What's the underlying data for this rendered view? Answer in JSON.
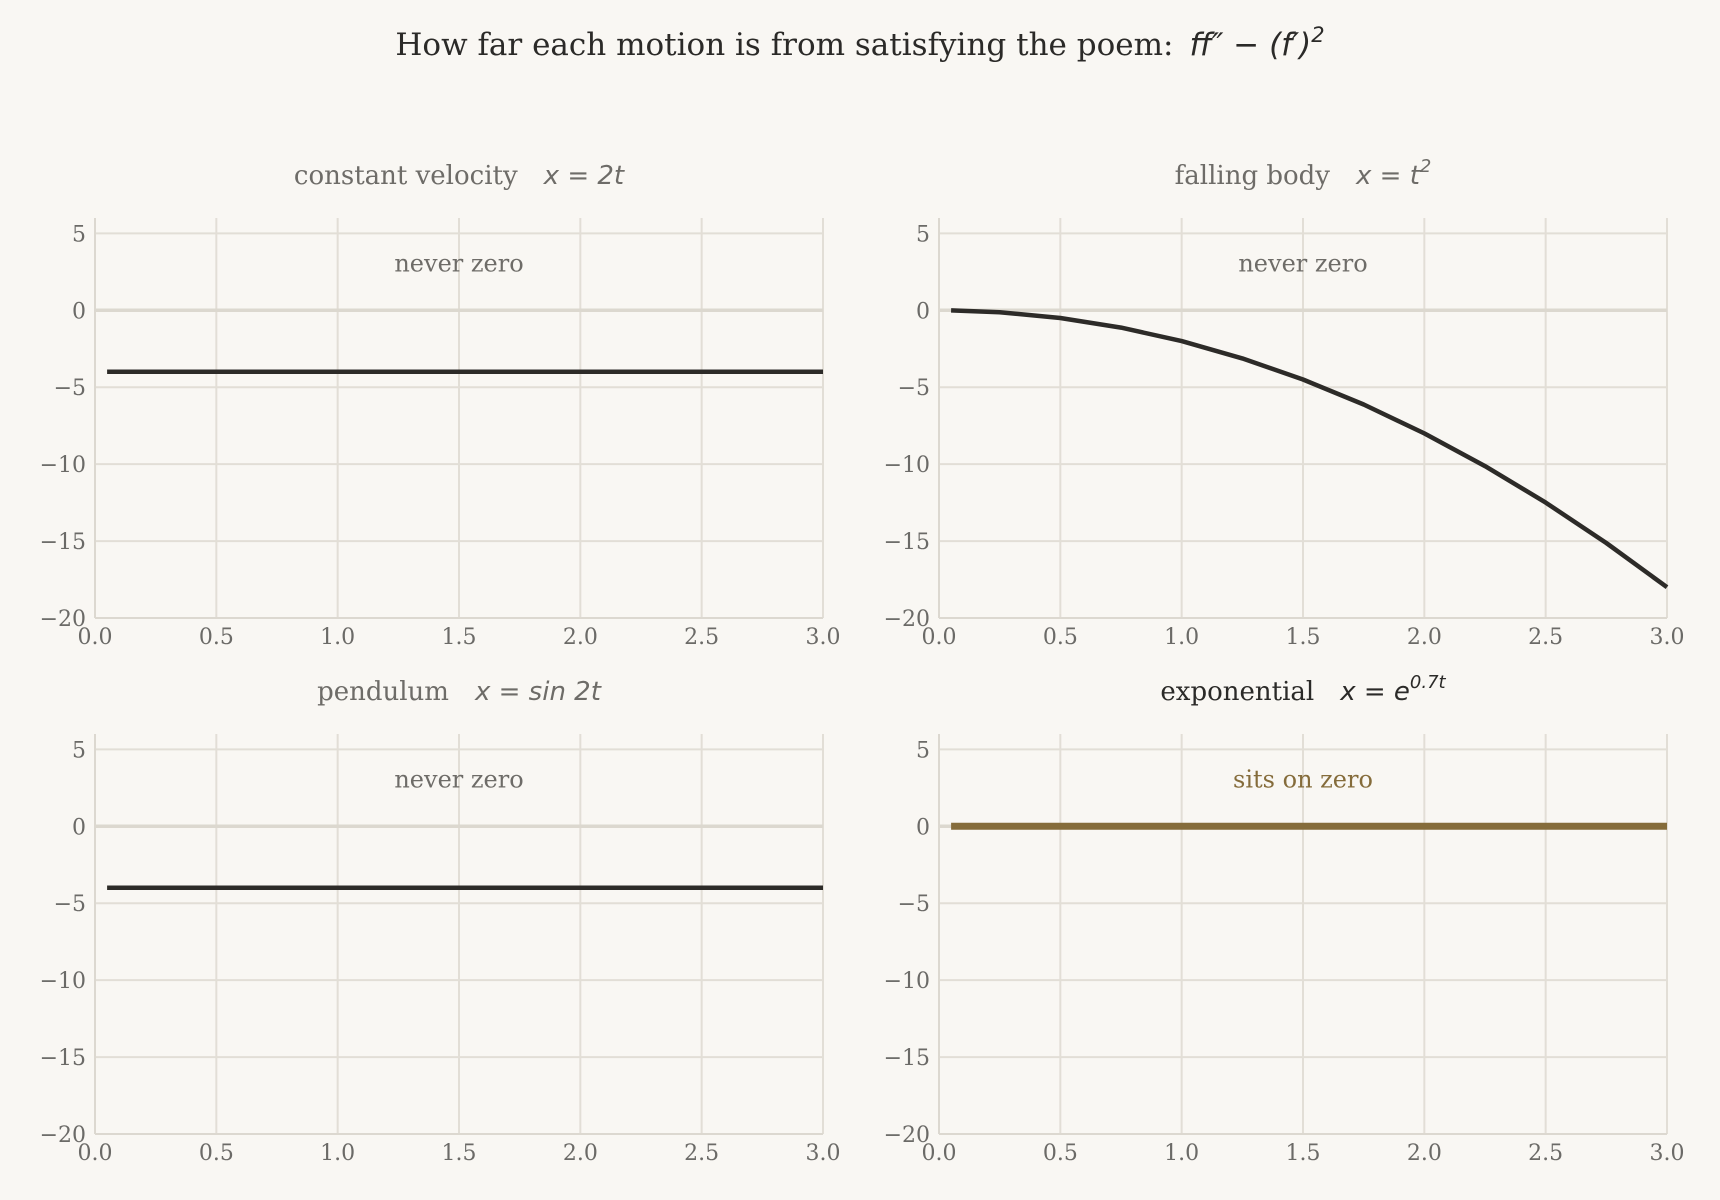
{
  "title": {
    "text": "How far each motion is from satisfying the poem:",
    "math": "ff″ − (f′)"
  },
  "colors": {
    "background": "#f9f7f3",
    "dark_curve": "#2d2b28",
    "highlight": "#856c3b",
    "muted_text": "#6e6c68",
    "title_text": "#2b2a28"
  },
  "chart_data": [
    {
      "type": "line",
      "title": "constant velocity",
      "formula": "x = 2t",
      "annotation": "never zero",
      "highlight": false,
      "xlim": [
        0,
        3
      ],
      "ylim": [
        -20,
        6
      ],
      "xticks": [
        "0.0",
        "0.5",
        "1.0",
        "1.5",
        "2.0",
        "2.5",
        "3.0"
      ],
      "yticks": [
        "5",
        "0",
        "−5",
        "−10",
        "−15",
        "−20"
      ],
      "series": [
        {
          "x": [
            0.05,
            0.5,
            1.0,
            1.5,
            2.0,
            2.5,
            3.0
          ],
          "y": [
            -4,
            -4,
            -4,
            -4,
            -4,
            -4,
            -4
          ]
        }
      ]
    },
    {
      "type": "line",
      "title": "falling body",
      "formula": "x = t",
      "annotation": "never zero",
      "highlight": false,
      "xlim": [
        0,
        3
      ],
      "ylim": [
        -20,
        6
      ],
      "xticks": [
        "0.0",
        "0.5",
        "1.0",
        "1.5",
        "2.0",
        "2.5",
        "3.0"
      ],
      "yticks": [
        "5",
        "0",
        "−5",
        "−10",
        "−15",
        "−20"
      ],
      "series": [
        {
          "x": [
            0.05,
            0.25,
            0.5,
            0.75,
            1.0,
            1.25,
            1.5,
            1.75,
            2.0,
            2.25,
            2.5,
            2.75,
            3.0
          ],
          "y": [
            -0.005,
            -0.125,
            -0.5,
            -1.125,
            -2.0,
            -3.125,
            -4.5,
            -6.125,
            -8.0,
            -10.125,
            -12.5,
            -15.125,
            -18.0
          ]
        }
      ]
    },
    {
      "type": "line",
      "title": "pendulum",
      "formula": "x = sin 2t",
      "annotation": "never zero",
      "highlight": false,
      "xlim": [
        0,
        3
      ],
      "ylim": [
        -20,
        6
      ],
      "xticks": [
        "0.0",
        "0.5",
        "1.0",
        "1.5",
        "2.0",
        "2.5",
        "3.0"
      ],
      "yticks": [
        "5",
        "0",
        "−5",
        "−10",
        "−15",
        "−20"
      ],
      "series": [
        {
          "x": [
            0.05,
            0.5,
            1.0,
            1.5,
            2.0,
            2.5,
            3.0
          ],
          "y": [
            -4,
            -4,
            -4,
            -4,
            -4,
            -4,
            -4
          ]
        }
      ]
    },
    {
      "type": "line",
      "title": "exponential",
      "formula": "x = e",
      "annotation": "sits on zero",
      "highlight": true,
      "xlim": [
        0,
        3
      ],
      "ylim": [
        -20,
        6
      ],
      "xticks": [
        "0.0",
        "0.5",
        "1.0",
        "1.5",
        "2.0",
        "2.5",
        "3.0"
      ],
      "yticks": [
        "5",
        "0",
        "−5",
        "−10",
        "−15",
        "−20"
      ],
      "series": [
        {
          "x": [
            0.05,
            0.5,
            1.0,
            1.5,
            2.0,
            2.5,
            3.0
          ],
          "y": [
            0,
            0,
            0,
            0,
            0,
            0,
            0
          ]
        }
      ]
    }
  ]
}
